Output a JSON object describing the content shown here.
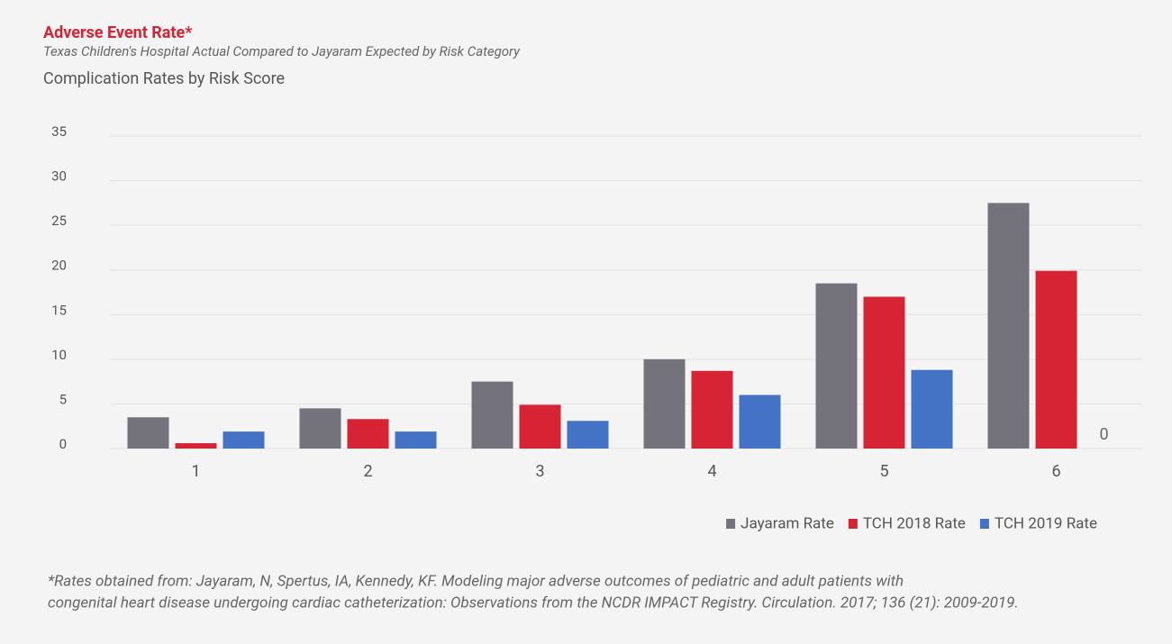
{
  "chart_data": {
    "type": "bar",
    "title": "Adverse Event Rate*",
    "subtitle": "Texas Children's Hospital Actual Compared to Jayaram Expected by Risk Category",
    "y_label": "Complication Rates by Risk Score",
    "categories": [
      "1",
      "2",
      "3",
      "4",
      "5",
      "6"
    ],
    "series": [
      {
        "name": "Jayaram Rate",
        "color": "#74737c",
        "values": [
          3.5,
          4.5,
          7.5,
          10,
          18.5,
          27.5
        ]
      },
      {
        "name": "TCH 2018 Rate",
        "color": "#d62434",
        "values": [
          0.6,
          3.3,
          4.9,
          8.7,
          17,
          19.9
        ]
      },
      {
        "name": "TCH 2019 Rate",
        "color": "#4472c4",
        "values": [
          1.9,
          1.9,
          3.1,
          6,
          8.8,
          0
        ]
      }
    ],
    "ylim": [
      0,
      35
    ],
    "yticks": [
      0,
      5,
      10,
      15,
      20,
      25,
      30,
      35
    ],
    "grid": true,
    "legend": "bottom-right",
    "footnote": [
      "*Rates obtained from: Jayaram, N, Spertus, IA, Kennedy, KF. Modeling major adverse outcomes of pediatric and adult patients with",
      "congenital heart disease undergoing cardiac catheterization: Observations from the NCDR IMPACT Registry. Circulation. 2017; 136 (21): 2009-2019."
    ]
  }
}
